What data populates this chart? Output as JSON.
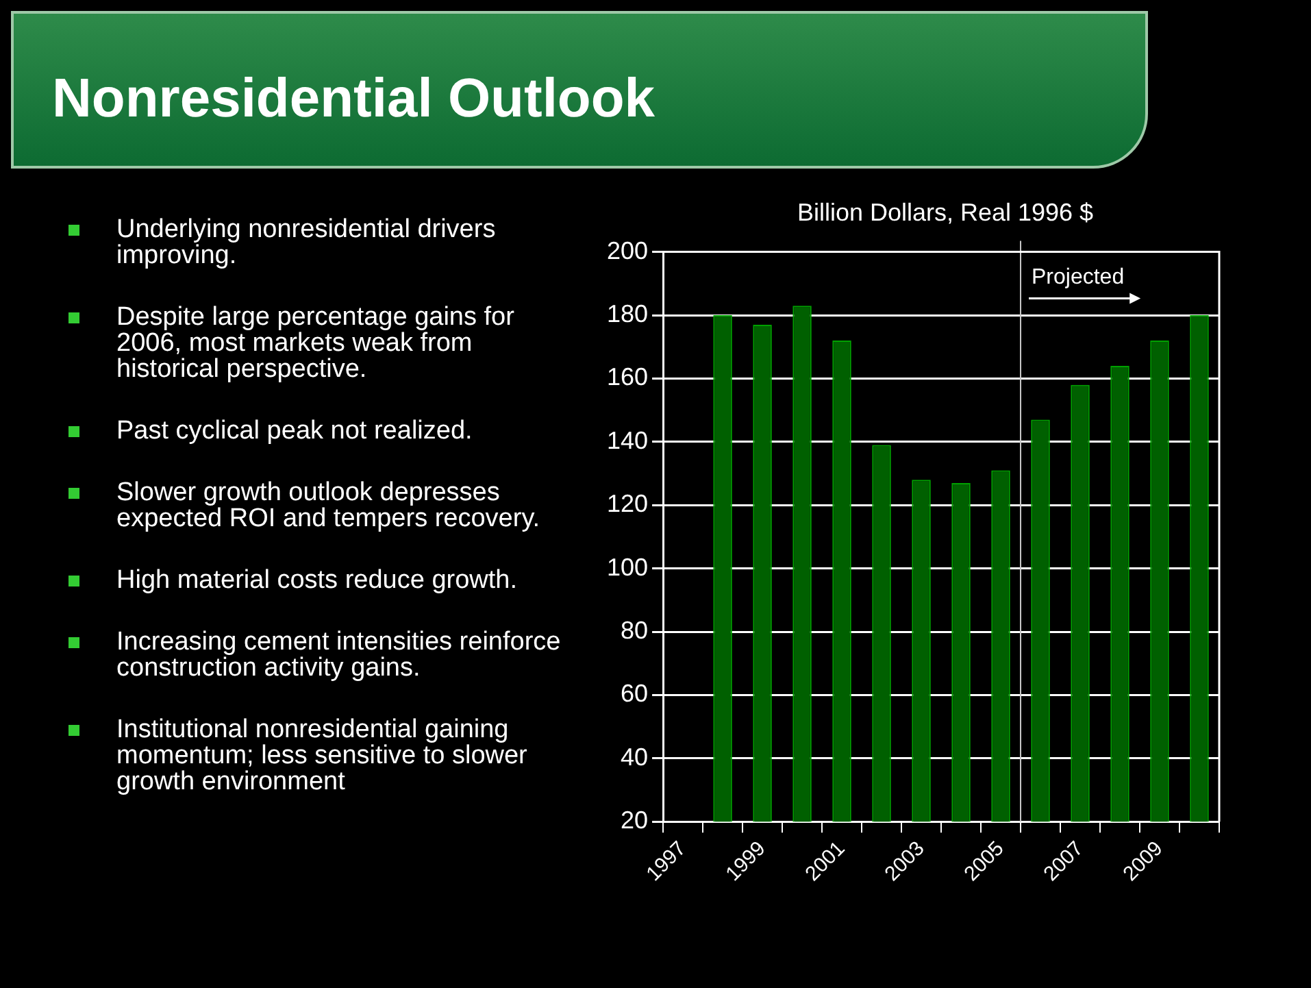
{
  "chart_data": {
    "type": "bar",
    "title": "Nonresidential Outlook",
    "subtitle": "Billion Dollars, Real 1996 $",
    "categories": [
      "1997",
      null,
      "1999",
      null,
      "2001",
      null,
      "2003",
      null,
      "2005",
      null,
      "2007",
      null,
      "2009",
      null
    ],
    "values": [
      null,
      180,
      177,
      183,
      172,
      139,
      128,
      127,
      131,
      147,
      158,
      164,
      172,
      180
    ],
    "color": "#006000",
    "ylim": [
      20,
      200
    ],
    "yticks": [
      20,
      40,
      60,
      80,
      100,
      120,
      140,
      160,
      180,
      200
    ],
    "grid": "y",
    "annotations": [
      "Projected",
      "Underlying nonresidential drivers improving.",
      "Despite large percentage gains for 2006, most markets weak from historical perspective.",
      "Past cyclical peak not realized.",
      "Slower growth outlook depresses expected ROI and tempers recovery.",
      "High material costs reduce growth.",
      "Increasing cement intensities reinforce construction activity gains.",
      "Institutional nonresidential gaining momentum; less sensitive to slower growth environment"
    ]
  }
}
